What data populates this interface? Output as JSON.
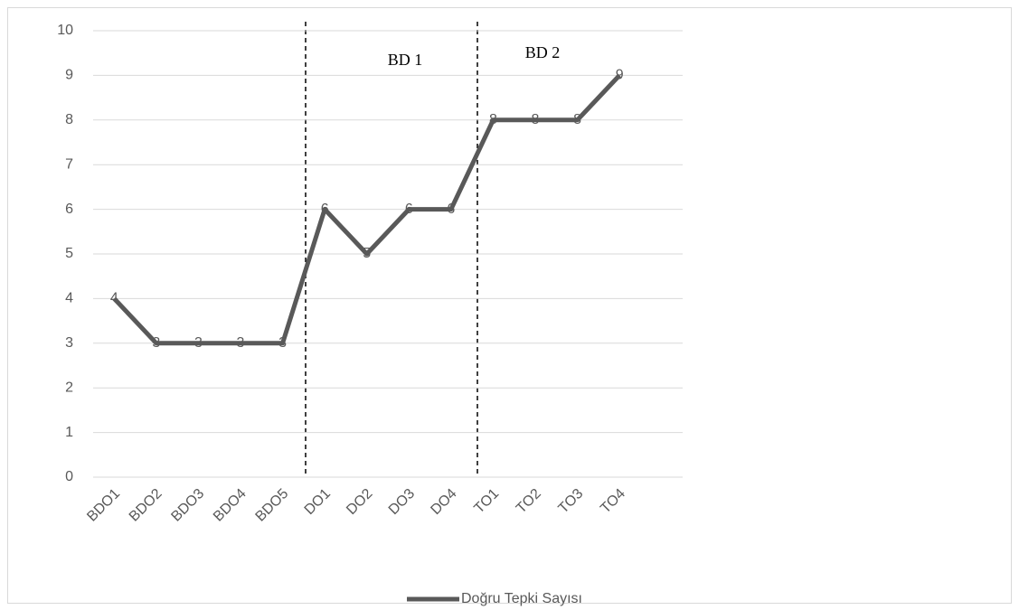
{
  "chart_data": {
    "type": "line",
    "categories": [
      "BDO1",
      "BDO2",
      "BDO3",
      "BDO4",
      "BDO5",
      "DO1",
      "DO2",
      "DO3",
      "DO4",
      "TO1",
      "TO2",
      "TO3",
      "TO4",
      null
    ],
    "series": [
      {
        "name": "Doğru Tepki Sayısı",
        "color": "#595959",
        "values": [
          4,
          3,
          3,
          3,
          3,
          6,
          5,
          6,
          6,
          8,
          8,
          8,
          9,
          null
        ]
      }
    ],
    "ylim": [
      0,
      10
    ],
    "yticks": [
      0,
      1,
      2,
      3,
      4,
      5,
      6,
      7,
      8,
      9,
      10
    ],
    "grid": true,
    "legend": "bottom",
    "annotations": [
      "BD 1",
      "BD 2"
    ]
  }
}
